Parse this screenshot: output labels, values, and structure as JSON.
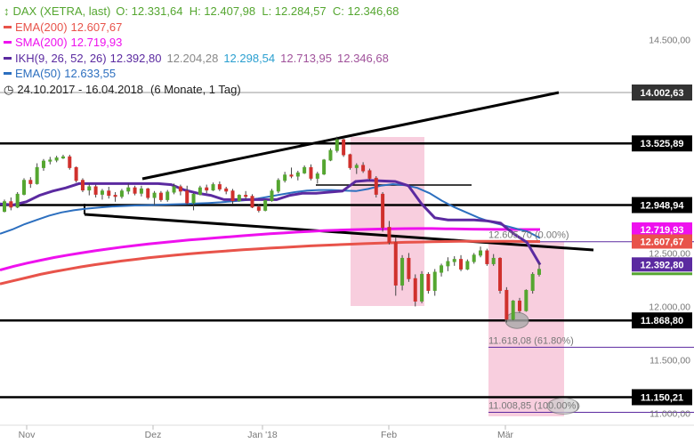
{
  "legend": {
    "title": "DAX (XETRA, last)",
    "ohlc": "O: 12.331,64  H: 12.407,98  L: 12.284,57  C: 12.346,68",
    "ema200": {
      "label": "EMA(200)",
      "value": "12.607,67",
      "color": "#e8534a"
    },
    "sma200": {
      "label": "SMA(200)",
      "value": "12.719,93",
      "color": "#ee11ee"
    },
    "ikh": {
      "label": "IKH(9, 26, 52, 26)",
      "v1": "12.392,80",
      "v2": "12.204,28",
      "v3": "12.298,54",
      "v4": "12.713,95",
      "v5": "12.346,68",
      "color": "#5b2aa0"
    },
    "ema50": {
      "label": "EMA(50)",
      "value": "12.633,55",
      "color": "#2c6fbf"
    },
    "period": "24.10.2017 - 16.04.2018",
    "period_detail": "(6 Monate, 1 Tag)"
  },
  "colors": {
    "up": "#55a630",
    "down": "#d0312d",
    "box": "#f7c6d8"
  },
  "chart_data": {
    "type": "candlestick",
    "title": "DAX (XETRA, last)",
    "y_ticks": [
      "14.500,00",
      "14.000,00",
      "13.000,00",
      "12.500,00",
      "12.000,00",
      "11.500,00",
      "11.000,00"
    ],
    "x_ticks": [
      "Nov",
      "Dez",
      "Jan '18",
      "Feb",
      "Mär"
    ],
    "ylim": [
      10950,
      14650
    ],
    "horizontal_levels": [
      {
        "value": 14002.63,
        "label": "14.002,63",
        "color": "#333333",
        "tag_bg": "#333333"
      },
      {
        "value": 13525.89,
        "label": "13.525,89",
        "color": "#000000",
        "tag_bg": "#000000"
      },
      {
        "value": 12948.94,
        "label": "12.948,94",
        "color": "#000000",
        "tag_bg": "#000000"
      },
      {
        "value": 11868.8,
        "label": "11.868,80",
        "color": "#000000",
        "tag_bg": "#000000"
      },
      {
        "value": 11150.21,
        "label": "11.150,21",
        "color": "#000000",
        "tag_bg": "#000000"
      }
    ],
    "value_tags": [
      {
        "value": 12719.93,
        "label": "12.719,93",
        "bg": "#ee11ee"
      },
      {
        "value": 12607.67,
        "label": "12.607,67",
        "bg": "#e8534a"
      },
      {
        "value": 12392.8,
        "label": "12.392,80",
        "bg": "#5b2aa0"
      }
    ],
    "fib_levels": [
      {
        "value": 12605.7,
        "label": "12.605,70 (0.00%)"
      },
      {
        "value": 11618.08,
        "label": "11.618,08 (61.80%)"
      },
      {
        "value": 11008.85,
        "label": "11.008,85 (100.00%)"
      }
    ],
    "candles": [
      [
        12890,
        13000,
        12880,
        12980
      ],
      [
        12980,
        13020,
        12900,
        12930
      ],
      [
        12930,
        13070,
        12920,
        13050
      ],
      [
        13050,
        13200,
        13040,
        13180
      ],
      [
        13180,
        13210,
        13110,
        13150
      ],
      [
        13150,
        13340,
        13140,
        13300
      ],
      [
        13300,
        13380,
        13270,
        13360
      ],
      [
        13360,
        13400,
        13330,
        13370
      ],
      [
        13370,
        13410,
        13350,
        13390
      ],
      [
        13390,
        13420,
        13380,
        13400
      ],
      [
        13400,
        13420,
        13280,
        13300
      ],
      [
        13300,
        13310,
        13160,
        13180
      ],
      [
        13180,
        13200,
        13070,
        13090
      ],
      [
        13090,
        13150,
        13040,
        13120
      ],
      [
        13120,
        13140,
        13020,
        13050
      ],
      [
        13050,
        13100,
        13000,
        13080
      ],
      [
        13080,
        13120,
        13010,
        13040
      ],
      [
        13040,
        13070,
        12980,
        13030
      ],
      [
        13030,
        13100,
        13010,
        13080
      ],
      [
        13080,
        13150,
        13050,
        13110
      ],
      [
        13110,
        13130,
        13040,
        13060
      ],
      [
        13060,
        13130,
        13030,
        13100
      ],
      [
        13100,
        13110,
        13000,
        13020
      ],
      [
        13020,
        13080,
        12950,
        13060
      ],
      [
        13060,
        13080,
        12980,
        13000
      ],
      [
        13000,
        13090,
        12980,
        13070
      ],
      [
        13070,
        13150,
        13050,
        13120
      ],
      [
        13120,
        13140,
        13040,
        13080
      ],
      [
        13080,
        13130,
        12950,
        12970
      ],
      [
        12970,
        13060,
        12900,
        13050
      ],
      [
        13050,
        13130,
        13040,
        13110
      ],
      [
        13110,
        13140,
        13060,
        13090
      ],
      [
        13090,
        13160,
        13080,
        13140
      ],
      [
        13140,
        13170,
        13080,
        13100
      ],
      [
        13100,
        13120,
        13050,
        13080
      ],
      [
        13080,
        13100,
        12960,
        12990
      ],
      [
        12990,
        13050,
        12980,
        13040
      ],
      [
        13040,
        13080,
        13000,
        13030
      ],
      [
        13030,
        13050,
        12920,
        12930
      ],
      [
        12930,
        12960,
        12880,
        12900
      ],
      [
        12900,
        13000,
        12890,
        12990
      ],
      [
        12990,
        13100,
        12980,
        13080
      ],
      [
        13080,
        13200,
        13060,
        13180
      ],
      [
        13180,
        13260,
        13160,
        13230
      ],
      [
        13230,
        13300,
        13200,
        13220
      ],
      [
        13220,
        13270,
        13180,
        13250
      ],
      [
        13250,
        13320,
        13240,
        13300
      ],
      [
        13300,
        13330,
        13180,
        13200
      ],
      [
        13200,
        13260,
        13150,
        13240
      ],
      [
        13240,
        13380,
        13230,
        13370
      ],
      [
        13370,
        13480,
        13360,
        13460
      ],
      [
        13460,
        13590,
        13440,
        13560
      ],
      [
        13560,
        13580,
        13400,
        13420
      ],
      [
        13420,
        13430,
        13280,
        13300
      ],
      [
        13300,
        13340,
        13240,
        13320
      ],
      [
        13320,
        13350,
        13250,
        13270
      ],
      [
        13270,
        13290,
        13180,
        13200
      ],
      [
        13200,
        13220,
        13020,
        13050
      ],
      [
        13050,
        13070,
        12700,
        12740
      ],
      [
        12740,
        12800,
        12580,
        12600
      ],
      [
        12600,
        12650,
        12100,
        12200
      ],
      [
        12200,
        12480,
        12150,
        12450
      ],
      [
        12450,
        12500,
        12230,
        12260
      ],
      [
        12260,
        12300,
        12000,
        12050
      ],
      [
        12050,
        12330,
        12030,
        12300
      ],
      [
        12300,
        12320,
        12120,
        12150
      ],
      [
        12150,
        12350,
        12100,
        12320
      ],
      [
        12320,
        12400,
        12280,
        12380
      ],
      [
        12380,
        12460,
        12330,
        12420
      ],
      [
        12420,
        12470,
        12380,
        12440
      ],
      [
        12440,
        12480,
        12330,
        12350
      ],
      [
        12350,
        12440,
        12340,
        12420
      ],
      [
        12420,
        12500,
        12400,
        12480
      ],
      [
        12480,
        12560,
        12460,
        12520
      ],
      [
        12520,
        12540,
        12380,
        12400
      ],
      [
        12400,
        12490,
        12380,
        12450
      ],
      [
        12450,
        12460,
        12120,
        12150
      ],
      [
        12150,
        12180,
        11850,
        11880
      ],
      [
        11880,
        12060,
        11870,
        12050
      ],
      [
        12050,
        12080,
        11940,
        11960
      ],
      [
        11960,
        12160,
        11950,
        12150
      ],
      [
        12150,
        12320,
        12120,
        12300
      ],
      [
        12300,
        12410,
        12280,
        12347
      ]
    ],
    "ema200": [
      12210,
      12240,
      12270,
      12300,
      12325,
      12348,
      12370,
      12390,
      12408,
      12425,
      12440,
      12455,
      12468,
      12480,
      12492,
      12503,
      12512,
      12521,
      12530,
      12538,
      12546,
      12553,
      12560,
      12567,
      12573,
      12578,
      12583,
      12588,
      12592,
      12596,
      12600,
      12603,
      12606,
      12608,
      12609,
      12610,
      12610,
      12609,
      12609,
      12608,
      12608
    ],
    "sma200": [
      12340,
      12375,
      12405,
      12432,
      12458,
      12480,
      12500,
      12520,
      12538,
      12555,
      12570,
      12585,
      12598,
      12610,
      12622,
      12632,
      12642,
      12652,
      12662,
      12671,
      12680,
      12688,
      12696,
      12703,
      12710,
      12714,
      12718,
      12721,
      12724,
      12726,
      12728,
      12729,
      12729,
      12727,
      12725,
      12723,
      12722,
      12721,
      12720,
      12720,
      12720
    ],
    "ema50": [
      12680,
      12720,
      12770,
      12810,
      12850,
      12880,
      12900,
      12915,
      12925,
      12935,
      12940,
      12945,
      12948,
      12952,
      12955,
      12958,
      12963,
      12968,
      12975,
      12985,
      12995,
      13010,
      13030,
      13050,
      13070,
      13085,
      13090,
      13090,
      13085,
      13080,
      13100,
      13130,
      13145,
      13135,
      13110,
      13060,
      12990,
      12930,
      12880,
      12830,
      12790,
      12760,
      12730,
      12700,
      12640
    ],
    "ikh": [
      12960,
      12950,
      12980,
      13040,
      13080,
      13110,
      13150,
      13150,
      13150,
      13150,
      13150,
      13150,
      13150,
      13140,
      13090,
      13060,
      13040,
      13000,
      13000,
      13000,
      13000,
      13000,
      13040,
      13060,
      13060,
      13070,
      13080,
      13170,
      13180,
      13175,
      13170,
      13130,
      12960,
      12830,
      12810,
      12810,
      12810,
      12800,
      12780,
      12680,
      12600,
      12390
    ]
  }
}
